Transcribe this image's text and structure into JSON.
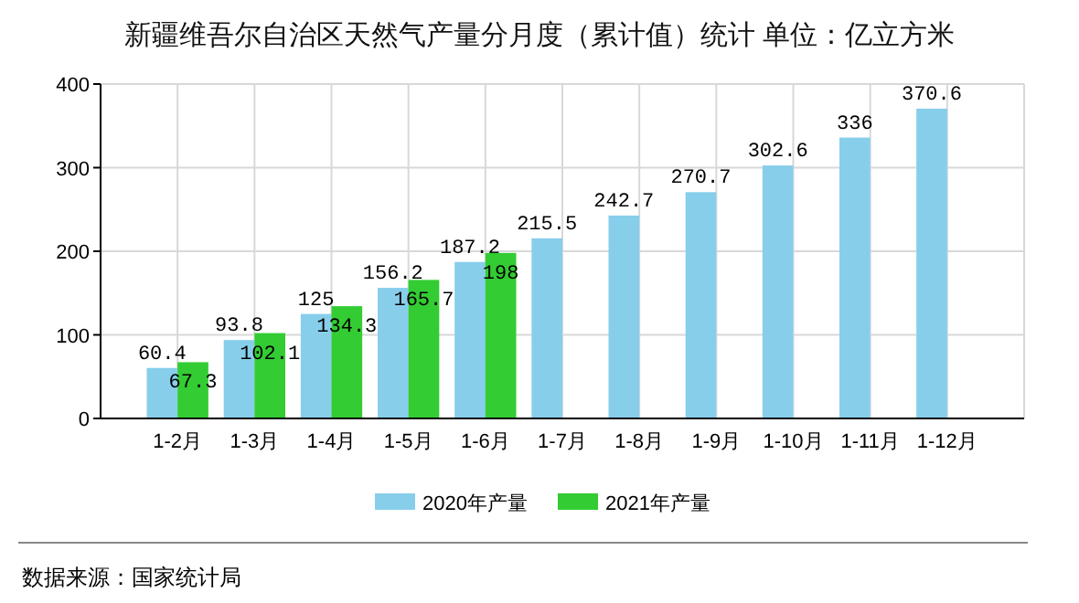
{
  "chart_data": {
    "type": "bar",
    "title": "新疆维吾尔自治区天然气产量分月度（累计值）统计 单位：亿立方米",
    "categories": [
      "1-2月",
      "1-3月",
      "1-4月",
      "1-5月",
      "1-6月",
      "1-7月",
      "1-8月",
      "1-9月",
      "1-10月",
      "1-11月",
      "1-12月"
    ],
    "series": [
      {
        "name": "2020年产量",
        "color": "#87ceeb",
        "values": [
          60.4,
          93.8,
          125,
          156.2,
          187.2,
          215.5,
          242.7,
          270.7,
          302.6,
          336,
          370.6
        ]
      },
      {
        "name": "2021年产量",
        "color": "#33cc33",
        "values": [
          67.3,
          102.1,
          134.3,
          165.7,
          198,
          null,
          null,
          null,
          null,
          null,
          null
        ]
      }
    ],
    "ylim": [
      0,
      400
    ],
    "yticks": [
      0,
      100,
      200,
      300,
      400
    ],
    "grid": true,
    "legend": "bottom",
    "data_labels": true,
    "annotations": [
      "数据来源：国家统计局"
    ]
  }
}
